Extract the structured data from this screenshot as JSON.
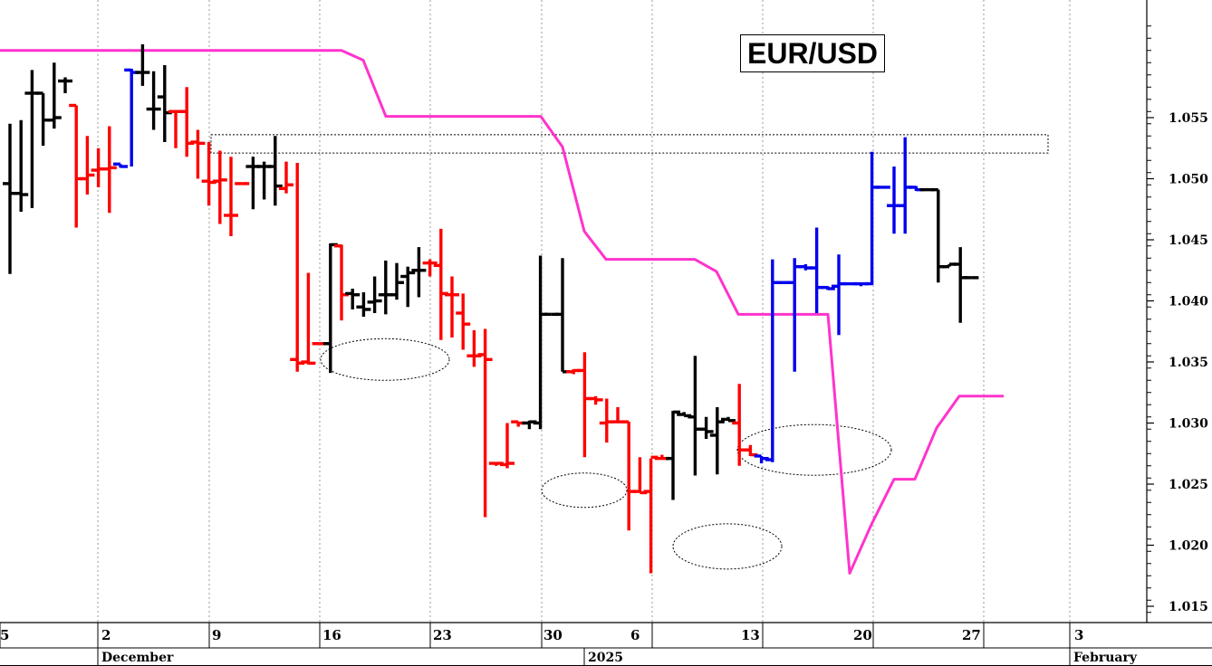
{
  "chart_data": {
    "type": "ohlc",
    "title": "EUR/USD",
    "colors": {
      "up_trend": "#0000ee",
      "down_trend": "#ff0000",
      "neutral": "#000000",
      "band": "#ff33cc"
    },
    "y_axis": {
      "min": 1.0125,
      "max": 1.0625,
      "ticks": [
        "1.015",
        "1.020",
        "1.025",
        "1.030",
        "1.035",
        "1.040",
        "1.045",
        "1.050",
        "1.055"
      ],
      "position": "right"
    },
    "x_axis": {
      "tick_labels": [
        "5",
        "2",
        "9",
        "16",
        "23",
        "30",
        "6",
        "13",
        "20",
        "27",
        "3"
      ],
      "month_labels": [
        "December",
        "2025",
        "February"
      ]
    },
    "bars": [
      {
        "h": 1.0545,
        "l": 1.0422,
        "o": 1.0496,
        "c": 1.0488,
        "color": "black"
      },
      {
        "h": 1.0548,
        "l": 1.0473,
        "o": 1.0488,
        "c": 1.0487,
        "color": "black"
      },
      {
        "h": 1.0589,
        "l": 1.0476,
        "o": 1.057,
        "c": 1.057,
        "color": "black"
      },
      {
        "h": 1.057,
        "l": 1.0527,
        "o": 1.057,
        "c": 1.0548,
        "color": "black"
      },
      {
        "h": 1.0595,
        "l": 1.0541,
        "o": 1.0548,
        "c": 1.055,
        "color": "black"
      },
      {
        "h": 1.0583,
        "l": 1.057,
        "o": 1.058,
        "c": 1.058,
        "color": "black"
      },
      {
        "h": 1.056,
        "l": 1.046,
        "o": 1.056,
        "c": 1.05,
        "color": "red"
      },
      {
        "h": 1.0535,
        "l": 1.0487,
        "o": 1.05,
        "c": 1.0503,
        "color": "red"
      },
      {
        "h": 1.0525,
        "l": 1.0493,
        "o": 1.0507,
        "c": 1.0508,
        "color": "red"
      },
      {
        "h": 1.0543,
        "l": 1.0472,
        "o": 1.0508,
        "c": 1.0509,
        "color": "red"
      },
      {
        "h": 1.0512,
        "l": 1.0509,
        "o": 1.0512,
        "c": 1.051,
        "color": "blue"
      },
      {
        "h": 1.059,
        "l": 1.051,
        "o": 1.0589,
        "c": 1.0587,
        "color": "blue"
      },
      {
        "h": 1.061,
        "l": 1.0576,
        "o": 1.0587,
        "c": 1.0587,
        "color": "black"
      },
      {
        "h": 1.0588,
        "l": 1.054,
        "o": 1.0557,
        "c": 1.0557,
        "color": "black"
      },
      {
        "h": 1.0593,
        "l": 1.053,
        "o": 1.0567,
        "c": 1.0554,
        "color": "black"
      },
      {
        "h": 1.0555,
        "l": 1.0525,
        "o": 1.0555,
        "c": 1.0555,
        "color": "red"
      },
      {
        "h": 1.0575,
        "l": 1.0518,
        "o": 1.0555,
        "c": 1.0529,
        "color": "red"
      },
      {
        "h": 1.054,
        "l": 1.05,
        "o": 1.053,
        "c": 1.0529,
        "color": "red"
      },
      {
        "h": 1.053,
        "l": 1.0478,
        "o": 1.0498,
        "c": 1.0497,
        "color": "red"
      },
      {
        "h": 1.0523,
        "l": 1.0463,
        "o": 1.0498,
        "c": 1.0499,
        "color": "red"
      },
      {
        "h": 1.0518,
        "l": 1.0453,
        "o": 1.047,
        "c": 1.047,
        "color": "red"
      },
      {
        "h": 1.0496,
        "l": 1.0496,
        "o": 1.0496,
        "c": 1.0496,
        "color": "red"
      },
      {
        "h": 1.0518,
        "l": 1.0475,
        "o": 1.051,
        "c": 1.051,
        "color": "black"
      },
      {
        "h": 1.0514,
        "l": 1.0483,
        "o": 1.051,
        "c": 1.051,
        "color": "black"
      },
      {
        "h": 1.0535,
        "l": 1.0478,
        "o": 1.051,
        "c": 1.0494,
        "color": "black"
      },
      {
        "h": 1.0514,
        "l": 1.0488,
        "o": 1.0492,
        "c": 1.0495,
        "color": "red"
      },
      {
        "h": 1.0513,
        "l": 1.0342,
        "o": 1.0352,
        "c": 1.0349,
        "color": "red"
      },
      {
        "h": 1.0423,
        "l": 1.0348,
        "o": 1.035,
        "c": 1.0349,
        "color": "red"
      },
      {
        "h": 1.0365,
        "l": 1.0365,
        "o": 1.0365,
        "c": 1.0365,
        "color": "red"
      },
      {
        "h": 1.0447,
        "l": 1.0341,
        "o": 1.0365,
        "c": 1.0446,
        "color": "black"
      },
      {
        "h": 1.0446,
        "l": 1.0384,
        "o": 1.0445,
        "c": 1.0405,
        "color": "red"
      },
      {
        "h": 1.041,
        "l": 1.0393,
        "o": 1.0406,
        "c": 1.0405,
        "color": "black"
      },
      {
        "h": 1.0407,
        "l": 1.0387,
        "o": 1.0395,
        "c": 1.0393,
        "color": "black"
      },
      {
        "h": 1.042,
        "l": 1.039,
        "o": 1.0399,
        "c": 1.04,
        "color": "black"
      },
      {
        "h": 1.0433,
        "l": 1.0389,
        "o": 1.0405,
        "c": 1.0405,
        "color": "black"
      },
      {
        "h": 1.0431,
        "l": 1.0401,
        "o": 1.0405,
        "c": 1.0415,
        "color": "black"
      },
      {
        "h": 1.0428,
        "l": 1.0395,
        "o": 1.042,
        "c": 1.0423,
        "color": "black"
      },
      {
        "h": 1.0444,
        "l": 1.0403,
        "o": 1.0425,
        "c": 1.0425,
        "color": "black"
      },
      {
        "h": 1.0434,
        "l": 1.042,
        "o": 1.0431,
        "c": 1.0431,
        "color": "red"
      },
      {
        "h": 1.0459,
        "l": 1.0368,
        "o": 1.0429,
        "c": 1.0406,
        "color": "red"
      },
      {
        "h": 1.042,
        "l": 1.037,
        "o": 1.0405,
        "c": 1.0405,
        "color": "red"
      },
      {
        "h": 1.0406,
        "l": 1.036,
        "o": 1.039,
        "c": 1.0381,
        "color": "red"
      },
      {
        "h": 1.0376,
        "l": 1.0346,
        "o": 1.0355,
        "c": 1.0355,
        "color": "red"
      },
      {
        "h": 1.0377,
        "l": 1.0223,
        "o": 1.0356,
        "c": 1.0352,
        "color": "red"
      },
      {
        "h": 1.0267,
        "l": 1.0265,
        "o": 1.0267,
        "c": 1.0267,
        "color": "red"
      },
      {
        "h": 1.03,
        "l": 1.0263,
        "o": 1.0266,
        "c": 1.0267,
        "color": "red"
      },
      {
        "h": 1.0301,
        "l": 1.0297,
        "o": 1.0301,
        "c": 1.03,
        "color": "red"
      },
      {
        "h": 1.0302,
        "l": 1.0295,
        "o": 1.03,
        "c": 1.0301,
        "color": "black"
      },
      {
        "h": 1.0437,
        "l": 1.0295,
        "o": 1.03,
        "c": 1.0389,
        "color": "black"
      },
      {
        "h": 1.0389,
        "l": 1.0389,
        "o": 1.0389,
        "c": 1.0389,
        "color": "black"
      },
      {
        "h": 1.0435,
        "l": 1.0342,
        "o": 1.0389,
        "c": 1.0342,
        "color": "black"
      },
      {
        "h": 1.0344,
        "l": 1.034,
        "o": 1.0342,
        "c": 1.0343,
        "color": "red"
      },
      {
        "h": 1.0358,
        "l": 1.0272,
        "o": 1.0343,
        "c": 1.032,
        "color": "red"
      },
      {
        "h": 1.0322,
        "l": 1.0315,
        "o": 1.032,
        "c": 1.0319,
        "color": "red"
      },
      {
        "h": 1.032,
        "l": 1.0284,
        "o": 1.03,
        "c": 1.0301,
        "color": "red"
      },
      {
        "h": 1.0313,
        "l": 1.0301,
        "o": 1.0301,
        "c": 1.0301,
        "color": "red"
      },
      {
        "h": 1.0301,
        "l": 1.0212,
        "o": 1.0301,
        "c": 1.0244,
        "color": "red"
      },
      {
        "h": 1.0272,
        "l": 1.0244,
        "o": 1.0244,
        "c": 1.0243,
        "color": "red"
      },
      {
        "h": 1.0271,
        "l": 1.0177,
        "o": 1.0244,
        "c": 1.0272,
        "color": "red"
      },
      {
        "h": 1.0274,
        "l": 1.027,
        "o": 1.0271,
        "c": 1.0271,
        "color": "red"
      },
      {
        "h": 1.031,
        "l": 1.0237,
        "o": 1.0271,
        "c": 1.0309,
        "color": "black"
      },
      {
        "h": 1.0309,
        "l": 1.0306,
        "o": 1.0307,
        "c": 1.0306,
        "color": "black"
      },
      {
        "h": 1.0355,
        "l": 1.0257,
        "o": 1.0305,
        "c": 1.0295,
        "color": "black"
      },
      {
        "h": 1.0305,
        "l": 1.0287,
        "o": 1.0295,
        "c": 1.0293,
        "color": "black"
      },
      {
        "h": 1.0313,
        "l": 1.0258,
        "o": 1.029,
        "c": 1.0301,
        "color": "black"
      },
      {
        "h": 1.0305,
        "l": 1.0302,
        "o": 1.0303,
        "c": 1.0302,
        "color": "black"
      },
      {
        "h": 1.0332,
        "l": 1.0265,
        "o": 1.03,
        "c": 1.0278,
        "color": "red"
      },
      {
        "h": 1.0282,
        "l": 1.0273,
        "o": 1.0278,
        "c": 1.0274,
        "color": "red"
      },
      {
        "h": 1.0273,
        "l": 1.0267,
        "o": 1.0273,
        "c": 1.0271,
        "color": "blue"
      },
      {
        "h": 1.0434,
        "l": 1.0268,
        "o": 1.027,
        "c": 1.0415,
        "color": "blue"
      },
      {
        "h": 1.0415,
        "l": 1.0415,
        "o": 1.0415,
        "c": 1.0415,
        "color": "blue"
      },
      {
        "h": 1.0435,
        "l": 1.0342,
        "o": 1.0415,
        "c": 1.0428,
        "color": "blue"
      },
      {
        "h": 1.043,
        "l": 1.0425,
        "o": 1.0428,
        "c": 1.0427,
        "color": "blue"
      },
      {
        "h": 1.046,
        "l": 1.039,
        "o": 1.0427,
        "c": 1.0411,
        "color": "blue"
      },
      {
        "h": 1.0412,
        "l": 1.0409,
        "o": 1.0411,
        "c": 1.041,
        "color": "blue"
      },
      {
        "h": 1.0438,
        "l": 1.0372,
        "o": 1.0412,
        "c": 1.0414,
        "color": "blue"
      },
      {
        "h": 1.0415,
        "l": 1.0413,
        "o": 1.0414,
        "c": 1.0414,
        "color": "blue"
      },
      {
        "h": 1.0415,
        "l": 1.0412,
        "o": 1.0414,
        "c": 1.0414,
        "color": "blue"
      },
      {
        "h": 1.0522,
        "l": 1.0413,
        "o": 1.0414,
        "c": 1.0493,
        "color": "blue"
      },
      {
        "h": 1.0494,
        "l": 1.0492,
        "o": 1.0493,
        "c": 1.0493,
        "color": "blue"
      },
      {
        "h": 1.051,
        "l": 1.0455,
        "o": 1.0478,
        "c": 1.0478,
        "color": "blue"
      },
      {
        "h": 1.0534,
        "l": 1.0455,
        "o": 1.0478,
        "c": 1.0493,
        "color": "blue"
      },
      {
        "h": 1.0494,
        "l": 1.049,
        "o": 1.0493,
        "c": 1.0491,
        "color": "blue"
      },
      {
        "h": 1.0492,
        "l": 1.049,
        "o": 1.0491,
        "c": 1.0491,
        "color": "black"
      },
      {
        "h": 1.0491,
        "l": 1.0415,
        "o": 1.0491,
        "c": 1.0428,
        "color": "black"
      },
      {
        "h": 1.043,
        "l": 1.0428,
        "o": 1.0428,
        "c": 1.043,
        "color": "black"
      },
      {
        "h": 1.0444,
        "l": 1.0382,
        "o": 1.043,
        "c": 1.0419,
        "color": "black"
      },
      {
        "h": 1.0419,
        "l": 1.0419,
        "o": 1.0419,
        "c": 1.0419,
        "color": "black"
      }
    ],
    "upper_band": [
      1.0605,
      1.0605,
      1.0605,
      1.0605,
      1.0605,
      1.0605,
      1.0605,
      1.0605,
      1.0605,
      1.0605,
      1.0605,
      1.0605,
      1.0605,
      1.0605,
      1.0605,
      1.0605,
      1.0605,
      1.0605,
      1.0605,
      1.0605,
      1.0605,
      1.0605,
      1.0605,
      1.0605,
      1.0605,
      1.0605,
      1.0605,
      1.0605,
      1.0605,
      1.0605,
      1.0605,
      1.0605,
      1.0598,
      1.0585,
      1.057,
      1.0555,
      1.0551,
      1.0551,
      1.0551,
      1.0551,
      1.0551,
      1.0551,
      1.0551,
      1.0551,
      1.0551,
      1.0551,
      1.0551,
      1.0551,
      1.0551,
      1.0551,
      1.0551,
      1.0551,
      1.0551,
      1.0551,
      1.0551,
      1.0551,
      1.0551,
      1.0551,
      1.0551,
      1.0551,
      1.0551,
      1.0551,
      1.0551,
      1.0551,
      1.0551,
      1.0551,
      1.0551,
      1.0551,
      1.0551,
      1.0551,
      1.0551,
      1.0551,
      1.0551,
      1.0551,
      1.0551,
      1.0551,
      1.0551,
      1.0551,
      1.0551,
      1.0551,
      1.0551,
      1.0551,
      1.0551,
      1.0551,
      1.0551,
      1.0551,
      1.0551,
      1.0551,
      1.0551,
      1.0551
    ],
    "band_points": [
      [
        0,
        1.0605
      ],
      [
        377,
        1.0605
      ],
      [
        401,
        1.0597
      ],
      [
        426,
        1.0551
      ],
      [
        597,
        1.0551
      ],
      [
        621,
        1.0526
      ],
      [
        645,
        1.0457
      ],
      [
        669,
        1.0434
      ],
      [
        767,
        1.0434
      ],
      [
        791,
        1.0424
      ],
      [
        815,
        1.0389
      ],
      [
        914,
        1.0389
      ],
      [
        938,
        1.0177
      ],
      [
        962,
        1.0217
      ],
      [
        987,
        1.0254
      ],
      [
        1010,
        1.0254
      ],
      [
        1034,
        1.0296
      ],
      [
        1059,
        1.0322
      ],
      [
        1108,
        1.0322
      ]
    ],
    "resistance_zone": {
      "y_top": 1.0536,
      "y_bottom": 1.0521,
      "x_start": 233,
      "x_end": 1157
    },
    "ellipses": [
      {
        "cx": 425,
        "cy_value": 1.0352,
        "rx": 71,
        "ry": 23
      },
      {
        "cx": 645,
        "cy_value": 1.0245,
        "rx": 47,
        "ry": 19
      },
      {
        "cx": 803,
        "cy_value": 1.0199,
        "rx": 60,
        "ry": 25
      },
      {
        "cx": 899,
        "cy_value": 1.0278,
        "rx": 85,
        "ry": 28
      }
    ]
  }
}
